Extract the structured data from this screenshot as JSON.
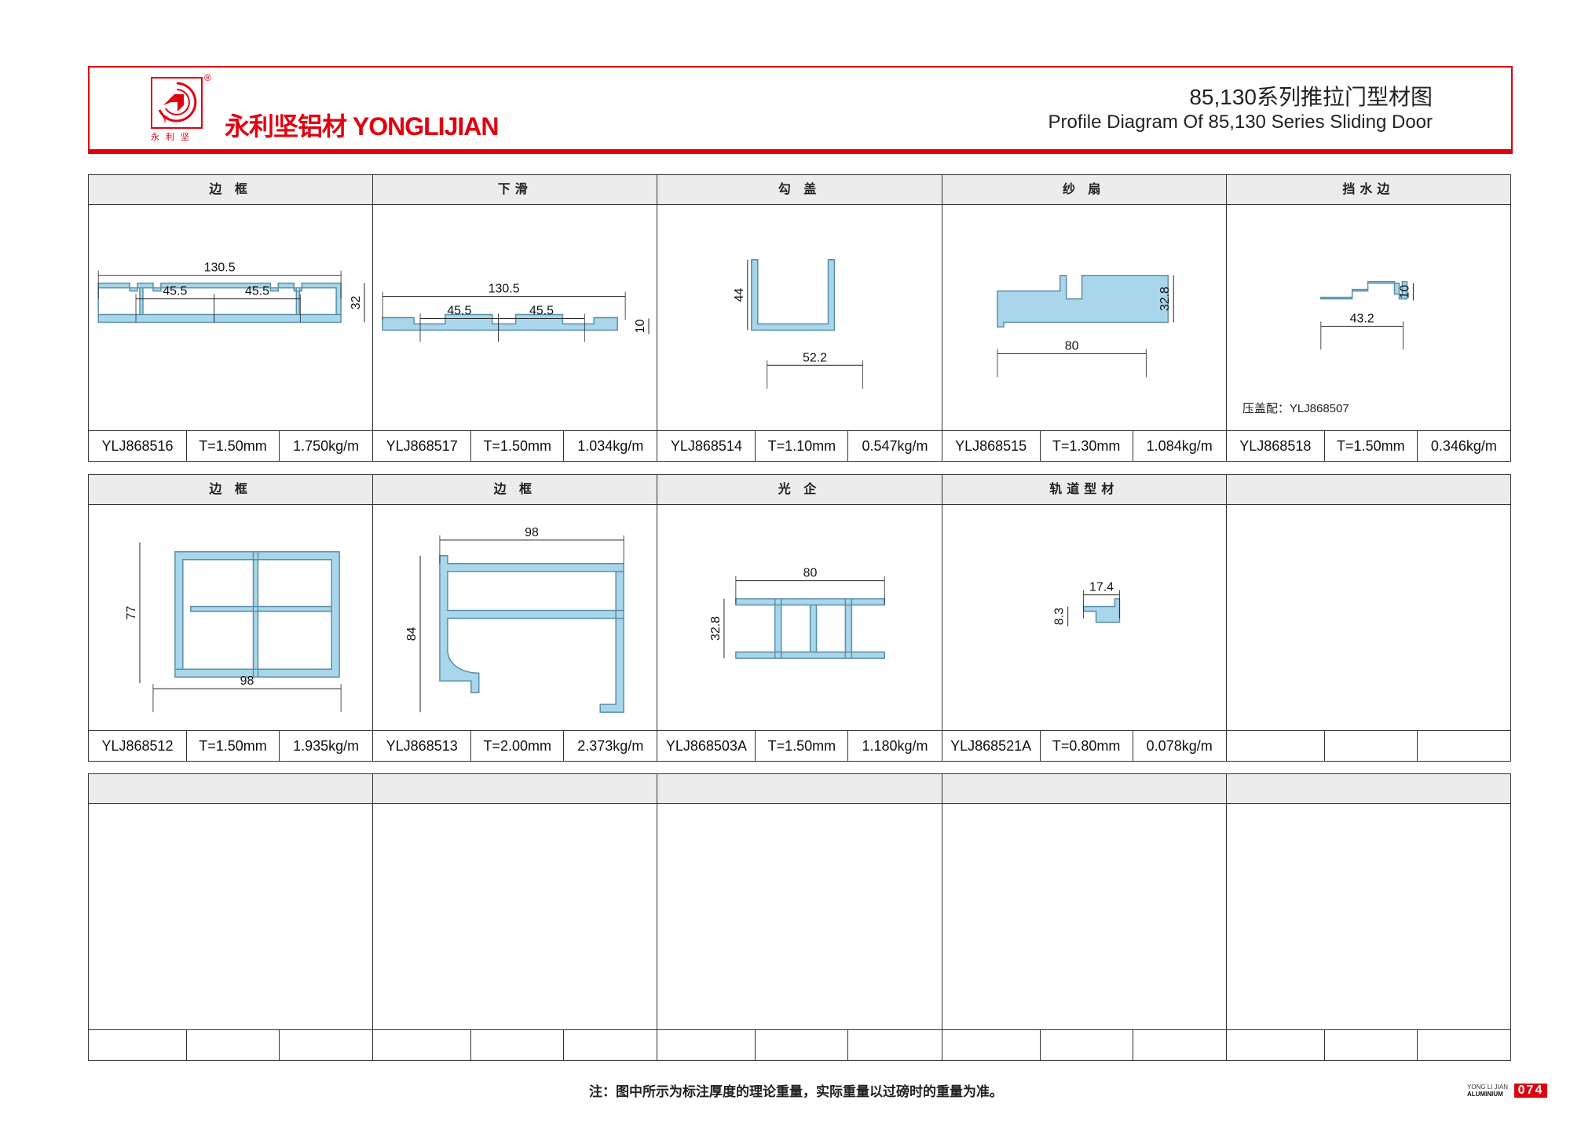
{
  "header": {
    "brand": "永利坚铝材 YONGLIJIAN",
    "logo_sub": "永利坚",
    "title_cn": "85,130系列推拉门型材图",
    "title_en": "Profile Diagram Of 85,130 Series Sliding Door"
  },
  "colors": {
    "accent": "#e0000f",
    "profile": "#a9d6ea",
    "header_bg": "#ececec"
  },
  "tables": [
    {
      "cells": [
        {
          "name": "边 框",
          "code": "YLJ868516",
          "thickness": "T=1.50mm",
          "weight": "1.750kg/m",
          "dims": [
            "130.5",
            "45.5",
            "45.5",
            "32"
          ]
        },
        {
          "name": "下滑",
          "code": "YLJ868517",
          "thickness": "T=1.50mm",
          "weight": "1.034kg/m",
          "dims": [
            "130.5",
            "45.5",
            "45.5",
            "10"
          ]
        },
        {
          "name": "勾 盖",
          "code": "YLJ868514",
          "thickness": "T=1.10mm",
          "weight": "0.547kg/m",
          "dims": [
            "44",
            "52.2"
          ]
        },
        {
          "name": "纱 扇",
          "code": "YLJ868515",
          "thickness": "T=1.30mm",
          "weight": "1.084kg/m",
          "dims": [
            "32.8",
            "80"
          ]
        },
        {
          "name": "挡水边",
          "code": "YLJ868518",
          "thickness": "T=1.50mm",
          "weight": "0.346kg/m",
          "dims": [
            "10",
            "43.2"
          ],
          "note": "压盖配：YLJ868507"
        }
      ]
    },
    {
      "cells": [
        {
          "name": "边 框",
          "code": "YLJ868512",
          "thickness": "T=1.50mm",
          "weight": "1.935kg/m",
          "dims": [
            "77",
            "98"
          ]
        },
        {
          "name": "边 框",
          "code": "YLJ868513",
          "thickness": "T=2.00mm",
          "weight": "2.373kg/m",
          "dims": [
            "98",
            "84"
          ]
        },
        {
          "name": "光 企",
          "code": "YLJ868503A",
          "thickness": "T=1.50mm",
          "weight": "1.180kg/m",
          "dims": [
            "80",
            "32.8"
          ]
        },
        {
          "name": "轨道型材",
          "code": "YLJ868521A",
          "thickness": "T=0.80mm",
          "weight": "0.078kg/m",
          "dims": [
            "17.4",
            "8.3"
          ]
        },
        {
          "name": "",
          "code": "",
          "thickness": "",
          "weight": "",
          "dims": []
        }
      ]
    },
    {
      "cells": [
        {
          "name": "",
          "code": "",
          "thickness": "",
          "weight": "",
          "dims": []
        },
        {
          "name": "",
          "code": "",
          "thickness": "",
          "weight": "",
          "dims": []
        },
        {
          "name": "",
          "code": "",
          "thickness": "",
          "weight": "",
          "dims": []
        },
        {
          "name": "",
          "code": "",
          "thickness": "",
          "weight": "",
          "dims": []
        },
        {
          "name": "",
          "code": "",
          "thickness": "",
          "weight": "",
          "dims": []
        }
      ]
    }
  ],
  "footer": {
    "note": "注：图中所示为标注厚度的理论重量，实际重量以过磅时的重量为准。",
    "brand_line1": "YONG LI JIAN",
    "brand_line2": "ALUMINIUM",
    "page": "074"
  }
}
